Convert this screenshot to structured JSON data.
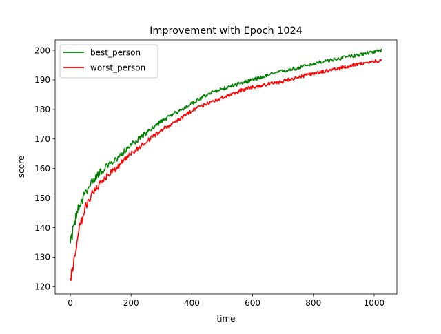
{
  "chart_data": {
    "type": "line",
    "title": "Improvement with Epoch 1024",
    "xlabel": "time",
    "ylabel": "score",
    "xlim": [
      -50,
      1075
    ],
    "ylim": [
      117.5,
      203.5
    ],
    "xticks": [
      0,
      200,
      400,
      600,
      800,
      1000
    ],
    "yticks": [
      120,
      130,
      140,
      150,
      160,
      170,
      180,
      190,
      200
    ],
    "xtick_labels": [
      "0",
      "200",
      "400",
      "600",
      "800",
      "1000"
    ],
    "ytick_labels": [
      "120",
      "130",
      "140",
      "150",
      "160",
      "170",
      "180",
      "190",
      "200"
    ],
    "grid": false,
    "legend_position": "upper-left",
    "series": [
      {
        "name": "best_person",
        "color": "#008000",
        "x": [
          0,
          10,
          25,
          50,
          75,
          100,
          125,
          150,
          200,
          250,
          300,
          350,
          400,
          450,
          500,
          550,
          600,
          650,
          700,
          750,
          800,
          850,
          900,
          950,
          1000,
          1024
        ],
        "y": [
          134,
          140,
          146,
          152,
          156,
          159,
          161,
          163,
          168,
          172,
          176,
          179,
          182,
          185,
          187,
          188.5,
          190,
          191.5,
          193,
          194,
          195.5,
          196.5,
          197.5,
          198.5,
          199.5,
          200
        ]
      },
      {
        "name": "worst_person",
        "color": "#ff0000",
        "x": [
          0,
          10,
          25,
          50,
          75,
          100,
          125,
          150,
          200,
          250,
          300,
          350,
          400,
          450,
          500,
          550,
          600,
          650,
          700,
          750,
          800,
          850,
          900,
          950,
          1000,
          1024
        ],
        "y": [
          122,
          128,
          138,
          147,
          152,
          155,
          158,
          160,
          165,
          169,
          173,
          176,
          179.5,
          182,
          184,
          186,
          187.5,
          188.5,
          189.5,
          191,
          192,
          193.2,
          194.3,
          195.3,
          196.3,
          196.5
        ]
      }
    ]
  }
}
